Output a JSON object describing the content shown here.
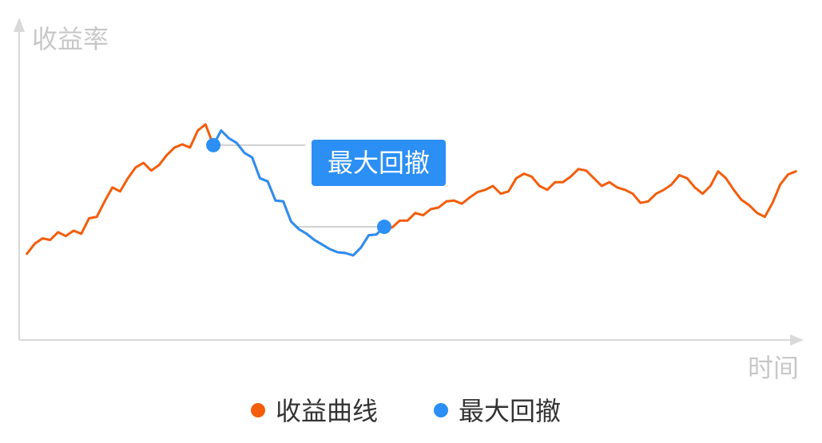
{
  "chart_data": {
    "type": "line",
    "title": "",
    "ylabel": "收益率",
    "xlabel": "时间",
    "x": [
      1,
      2,
      3,
      4,
      5,
      6,
      7,
      8,
      9,
      10,
      11,
      12,
      13,
      14,
      15,
      16,
      17,
      18,
      19,
      20,
      21,
      22,
      23,
      24,
      25,
      26,
      27,
      28,
      29,
      30,
      31,
      32,
      33,
      34,
      35,
      36,
      37,
      38,
      39,
      40,
      41,
      42,
      43,
      44,
      45,
      46,
      47,
      48,
      49,
      50,
      51,
      52,
      53,
      54,
      55,
      56,
      57,
      58,
      59,
      60,
      61,
      62,
      63,
      64,
      65,
      66,
      67,
      68,
      69,
      70,
      71,
      72,
      73,
      74,
      75,
      76,
      77,
      78,
      79,
      80,
      81,
      82,
      83,
      84,
      85,
      86,
      87,
      88,
      89,
      90,
      91,
      92,
      93,
      94,
      95,
      96,
      97,
      98,
      99,
      100
    ],
    "xlim": [
      0,
      101
    ],
    "ylim": [
      0,
      400
    ],
    "grid": false,
    "series": [
      {
        "name": "收益曲线",
        "color": "#f35d0c",
        "values": [
          112,
          125,
          132,
          130,
          140,
          135,
          142,
          138,
          158,
          160,
          180,
          198,
          193,
          210,
          224,
          230,
          220,
          227,
          240,
          250,
          254,
          250,
          272,
          280,
          253,
          272,
          262,
          256,
          243,
          237,
          210,
          206,
          181,
          180,
          154,
          144,
          138,
          130,
          124,
          118,
          114,
          113,
          110,
          120,
          136,
          137,
          147,
          146,
          155,
          155,
          165,
          162,
          170,
          172,
          180,
          181,
          177,
          185,
          192,
          195,
          200,
          190,
          193,
          210,
          216,
          212,
          200,
          195,
          205,
          205,
          212,
          222,
          220,
          210,
          200,
          205,
          198,
          195,
          190,
          178,
          180,
          190,
          195,
          202,
          214,
          210,
          198,
          190,
          200,
          219,
          210,
          195,
          182,
          175,
          165,
          160,
          178,
          202,
          215,
          219
        ]
      }
    ],
    "drawdown": {
      "name": "最大回撤",
      "color": "#2b8ff5",
      "start_index": 24,
      "end_index": 46
    },
    "annotation": {
      "label": "最大回撤"
    },
    "legend": {
      "position": "bottom",
      "items": [
        {
          "label": "收益曲线",
          "color": "#f35d0c"
        },
        {
          "label": "最大回撤",
          "color": "#2b8ff5"
        }
      ]
    }
  }
}
